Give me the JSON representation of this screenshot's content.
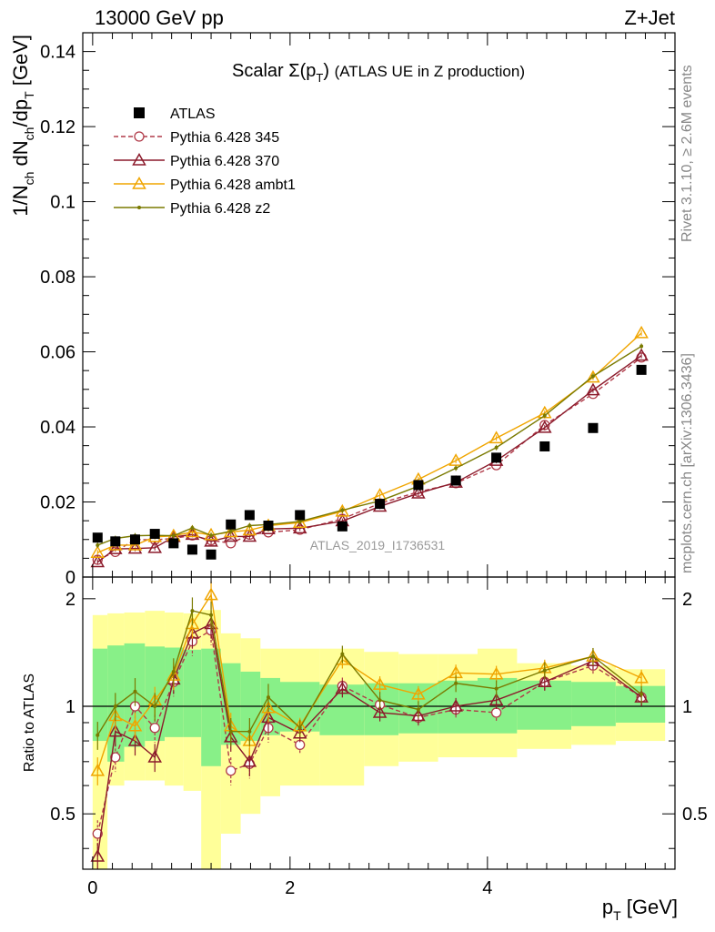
{
  "header": {
    "left": "13000 GeV pp",
    "right": "Z+Jet"
  },
  "side_labels": {
    "top": "Rivet 3.1.10, ≥ 2.6M events",
    "bottom": "mcplots.cern.ch [arXiv:1306.3436]"
  },
  "chart_data": {
    "type": "line",
    "title_main": "Scalar Σ(p",
    "title_sub": "T",
    "title_close": ")",
    "title_rest": "(ATLAS UE in Z production)",
    "watermark": "ATLAS_2019_I1736531",
    "xlabel": "p",
    "xlabel_sub": "T",
    "xlabel_unit": "[GeV]",
    "ylabel_main": "1/N",
    "ylabel_main_sub": "ch",
    "ylabel_mid": " dN",
    "ylabel_mid_sub": "ch",
    "ylabel_end": "/dp",
    "ylabel_end_sub": "T",
    "ylabel_unit": " [GeV]",
    "ratio_ylabel": "Ratio to ATLAS",
    "xlim": [
      -0.1,
      5.9
    ],
    "ylim": [
      0,
      0.145
    ],
    "ratio_ylim": [
      0.35,
      2.3
    ],
    "ratio_log": true,
    "x_ticks": [
      0,
      2,
      4
    ],
    "y_ticks": [
      {
        "v": 0,
        "label": "0"
      },
      {
        "v": 0.02,
        "label": "0.02"
      },
      {
        "v": 0.04,
        "label": "0.04"
      },
      {
        "v": 0.06,
        "label": "0.06"
      },
      {
        "v": 0.08,
        "label": "0.08"
      },
      {
        "v": 0.1,
        "label": "0.1"
      },
      {
        "v": 0.12,
        "label": "0.12"
      },
      {
        "v": 0.14,
        "label": "0.14"
      }
    ],
    "ratio_ticks": [
      {
        "v": 0.5,
        "label": "0.5"
      },
      {
        "v": 1,
        "label": "1"
      },
      {
        "v": 2,
        "label": "2"
      }
    ],
    "x": [
      0.05,
      0.23,
      0.43,
      0.63,
      0.82,
      1.01,
      1.2,
      1.4,
      1.59,
      1.78,
      2.1,
      2.53,
      2.91,
      3.3,
      3.68,
      4.09,
      4.58,
      5.07,
      5.56
    ],
    "band_edges": [
      0,
      0.15,
      0.32,
      0.53,
      0.73,
      0.92,
      1.1,
      1.3,
      1.5,
      1.7,
      1.9,
      2.3,
      2.75,
      3.1,
      3.5,
      3.9,
      4.3,
      4.85,
      5.3,
      5.8
    ],
    "band_inner": [
      [
        0.8,
        1.45
      ],
      [
        0.7,
        1.48
      ],
      [
        0.77,
        1.5
      ],
      [
        0.8,
        1.47
      ],
      [
        0.82,
        1.46
      ],
      [
        0.82,
        1.44
      ],
      [
        0.68,
        1.45
      ],
      [
        0.78,
        1.32
      ],
      [
        0.8,
        1.25
      ],
      [
        0.83,
        1.2
      ],
      [
        0.85,
        1.17
      ],
      [
        0.83,
        1.15
      ],
      [
        0.83,
        1.16
      ],
      [
        0.84,
        1.16
      ],
      [
        0.84,
        1.18
      ],
      [
        0.84,
        1.2
      ],
      [
        0.86,
        1.18
      ],
      [
        0.88,
        1.17
      ],
      [
        0.9,
        1.14
      ]
    ],
    "band_outer": [
      [
        0.3,
        1.8
      ],
      [
        0.6,
        1.82
      ],
      [
        0.62,
        1.83
      ],
      [
        0.62,
        1.85
      ],
      [
        0.6,
        1.83
      ],
      [
        0.58,
        1.82
      ],
      [
        0.35,
        1.86
      ],
      [
        0.44,
        1.6
      ],
      [
        0.5,
        1.55
      ],
      [
        0.56,
        1.45
      ],
      [
        0.6,
        1.45
      ],
      [
        0.6,
        1.45
      ],
      [
        0.68,
        1.42
      ],
      [
        0.7,
        1.4
      ],
      [
        0.72,
        1.4
      ],
      [
        0.72,
        1.45
      ],
      [
        0.76,
        1.32
      ],
      [
        0.78,
        1.3
      ],
      [
        0.8,
        1.27
      ]
    ],
    "data": {
      "name": "ATLAS",
      "values": [
        0.0105,
        0.0095,
        0.01,
        0.0115,
        0.009,
        0.0073,
        0.006,
        0.014,
        0.0165,
        0.0137,
        0.0165,
        0.0135,
        0.0195,
        0.0245,
        0.0257,
        0.0318,
        0.0348,
        0.0397,
        0.0552
      ]
    },
    "series": [
      {
        "name": "Pythia 6.428 345",
        "color": "#b03a48",
        "marker": "circle",
        "dashed": true,
        "values": [
          0.0046,
          0.0067,
          0.01,
          0.0099,
          0.0103,
          0.0111,
          0.0098,
          0.009,
          0.0113,
          0.0119,
          0.0126,
          0.0155,
          0.0196,
          0.0227,
          0.025,
          0.0298,
          0.0405,
          0.0488,
          0.0585
        ],
        "ratio": [
          0.44,
          0.72,
          1.0,
          0.87,
          1.17,
          1.52,
          1.63,
          0.66,
          0.69,
          0.87,
          0.78,
          1.14,
          1.01,
          0.93,
          0.98,
          0.96,
          1.17,
          1.3,
          1.06
        ]
      },
      {
        "name": "Pythia 6.428 370",
        "color": "#8b1a2b",
        "marker": "triangle-open",
        "dashed": false,
        "values": [
          0.004,
          0.0075,
          0.0076,
          0.0078,
          0.0107,
          0.0113,
          0.0095,
          0.0108,
          0.0108,
          0.0128,
          0.013,
          0.0149,
          0.0188,
          0.0223,
          0.0252,
          0.031,
          0.0398,
          0.0498,
          0.059
        ],
        "ratio": [
          0.38,
          0.85,
          0.8,
          0.72,
          1.19,
          1.6,
          1.7,
          0.82,
          0.7,
          0.93,
          0.84,
          1.12,
          0.96,
          0.94,
          1.0,
          1.04,
          1.17,
          1.34,
          1.06
        ]
      },
      {
        "name": "Pythia 6.428 ambt1",
        "color": "#f0a500",
        "marker": "triangle-open",
        "dashed": false,
        "values": [
          0.0065,
          0.0085,
          0.0085,
          0.0107,
          0.011,
          0.012,
          0.0112,
          0.012,
          0.0125,
          0.0137,
          0.0145,
          0.0175,
          0.0218,
          0.026,
          0.031,
          0.037,
          0.0437,
          0.0532,
          0.065
        ],
        "ratio": [
          0.66,
          0.94,
          0.88,
          1.04,
          1.22,
          1.7,
          2.05,
          0.88,
          0.8,
          0.99,
          0.88,
          1.35,
          1.15,
          1.08,
          1.24,
          1.23,
          1.28,
          1.38,
          1.2
        ]
      },
      {
        "name": "Pythia 6.428 z2",
        "color": "#7a7a00",
        "marker": "dot",
        "dashed": false,
        "values": [
          0.0085,
          0.0103,
          0.011,
          0.0111,
          0.011,
          0.0131,
          0.0111,
          0.0122,
          0.0137,
          0.014,
          0.0148,
          0.0178,
          0.0203,
          0.0242,
          0.029,
          0.0345,
          0.043,
          0.0535,
          0.0615
        ],
        "ratio": [
          0.83,
          1.0,
          1.1,
          1.0,
          1.25,
          1.85,
          1.8,
          0.85,
          0.85,
          1.06,
          0.87,
          1.4,
          1.04,
          0.98,
          1.16,
          1.12,
          1.26,
          1.38,
          1.08
        ]
      }
    ]
  }
}
